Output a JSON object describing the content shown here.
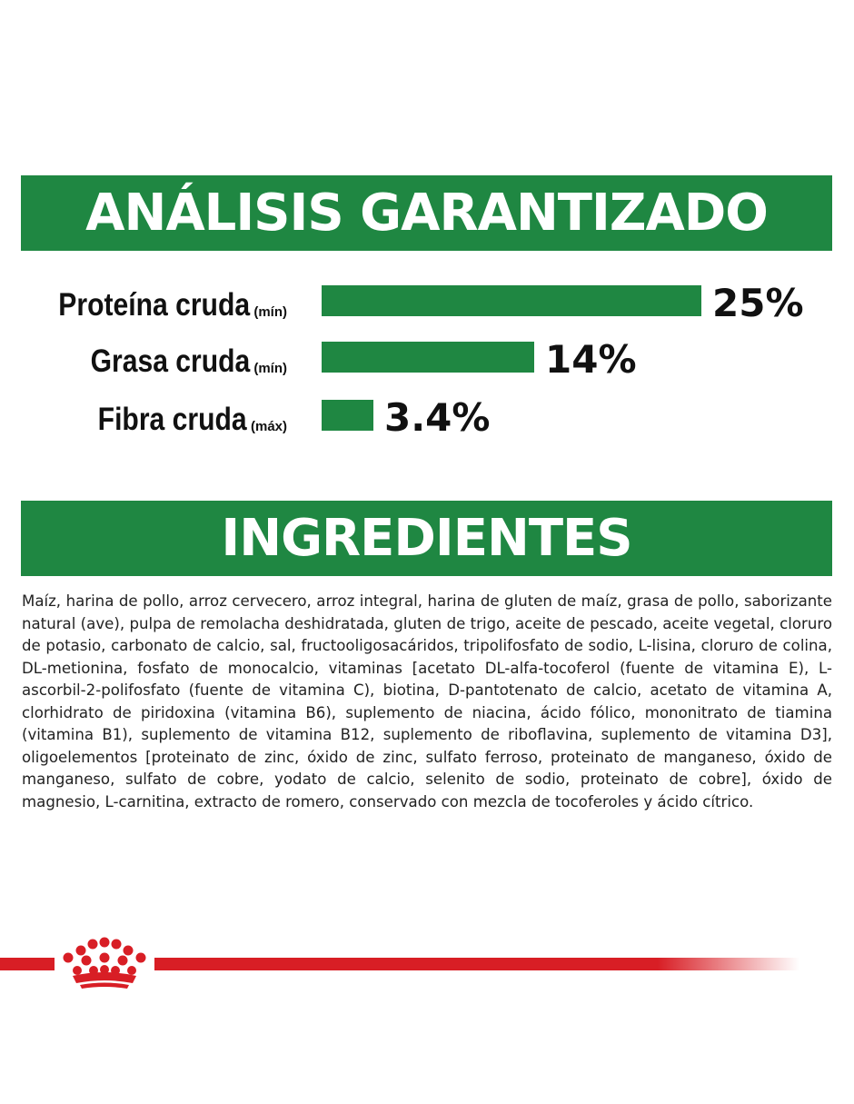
{
  "analysis": {
    "title": "ANÁLISIS GARANTIZADO",
    "rows": [
      {
        "label": "Proteína cruda",
        "qualifier": "(mín)",
        "value": "25%",
        "fraction": 0.25
      },
      {
        "label": "Grasa cruda",
        "qualifier": "(mín)",
        "value": "14%",
        "fraction": 0.14
      },
      {
        "label": "Fibra cruda",
        "qualifier": "(máx)",
        "value": "3.4%",
        "fraction": 0.034
      }
    ]
  },
  "ingredients": {
    "title": "INGREDIENTES",
    "text": "Maíz, harina de pollo, arroz cervecero, arroz integral, harina de gluten de maíz, grasa de pollo, saborizante natural (ave), pulpa de remolacha deshidratada, gluten de trigo, aceite de pescado, aceite vegetal, cloruro de potasio, carbonato de calcio, sal, fructooligosacáridos, tripolifosfato de sodio, L-lisina, cloruro de colina, DL-metionina, fosfato de monocalcio, vitaminas [acetato DL-alfa-tocoferol (fuente de vitamina E), L-ascorbil-2-polifosfato (fuente de vitamina C), biotina, D-pantotenato de calcio, acetato de vitamina A, clorhidrato de piridoxina (vitamina B6), suplemento de niacina, ácido fólico, mononitrato de tiamina (vitamina B1), suplemento de vitamina B12, suplemento de riboflavina, suplemento de vitamina D3], oligoelementos [proteinato de zinc, óxido de zinc, sulfato ferroso, proteinato de manganeso, óxido de manganeso, sulfato de cobre, yodato de calcio, selenito de sodio, proteinato de cobre], óxido de magnesio, L-carnitina, extracto de romero, conservado con mezcla de tocoferoles y ácido cítrico."
  },
  "brand": {
    "logo_icon": "crown-icon",
    "accent_color": "#d81e25",
    "banner_color": "#1f8742"
  }
}
